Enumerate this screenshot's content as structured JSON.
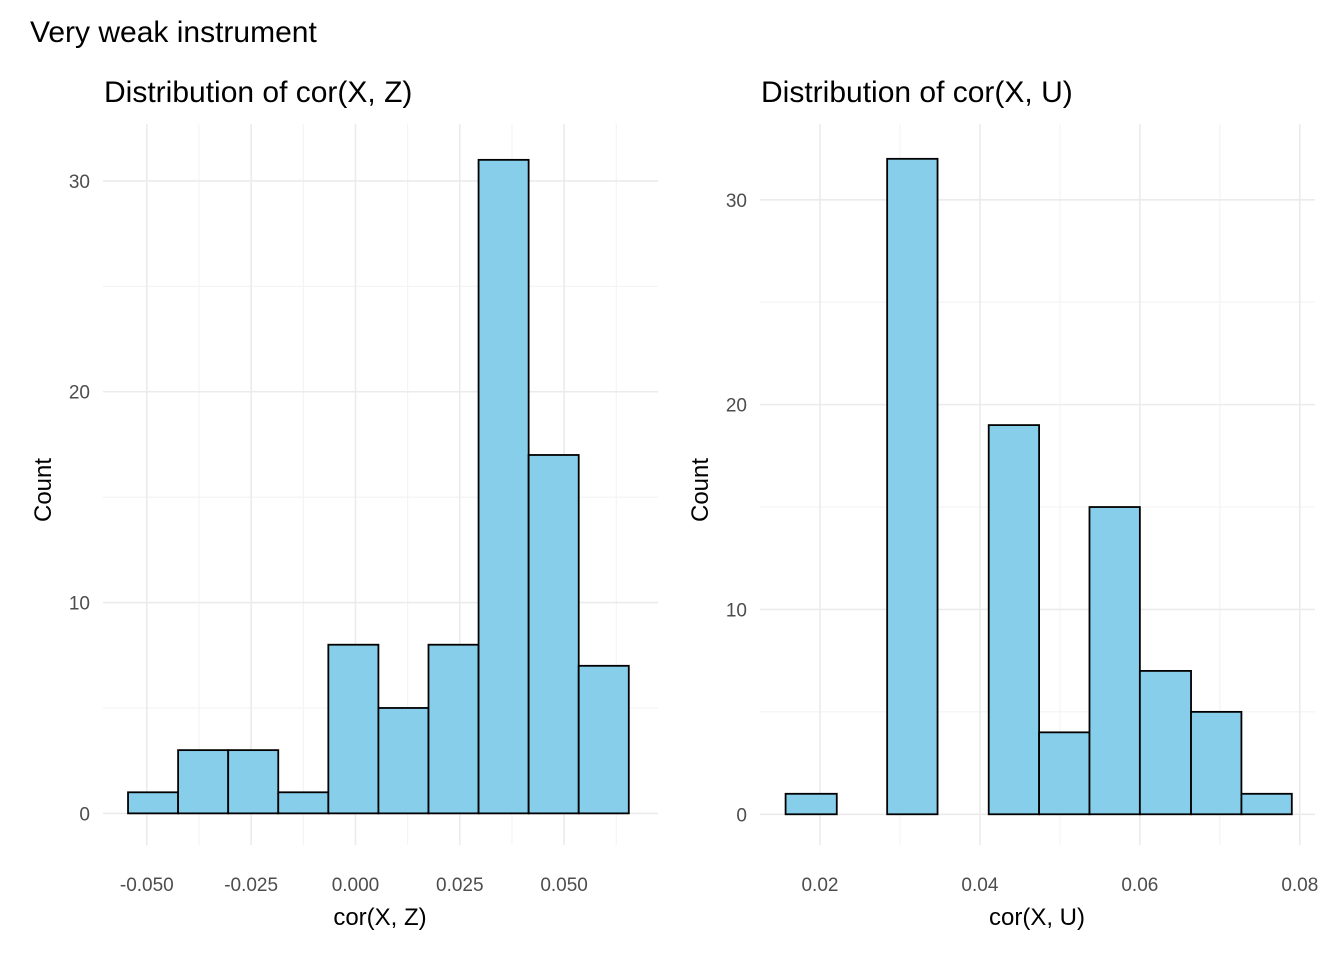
{
  "supertitle": "Very weak instrument",
  "colors": {
    "bar_fill": "#87CEEB",
    "bar_outline": "#000000"
  },
  "chart_data": [
    {
      "type": "bar",
      "title": "Distribution of cor(X, Z)",
      "xlabel": "cor(X, Z)",
      "ylabel": "Count",
      "grid": true,
      "xlim": [
        -0.0605,
        0.0725
      ],
      "ylim": [
        -1.5,
        32.7
      ],
      "x_ticks": [
        -0.05,
        -0.025,
        0.0,
        0.025,
        0.05
      ],
      "x_tick_labels": [
        "-0.050",
        "-0.025",
        "0.000",
        "0.025",
        "0.050"
      ],
      "y_ticks": [
        0,
        10,
        20,
        30
      ],
      "y_tick_labels": [
        "0",
        "10",
        "20",
        "30"
      ],
      "bin_edges": [
        -0.0545,
        -0.0425,
        -0.0305,
        -0.0185,
        -0.0065,
        0.0055,
        0.0175,
        0.0295,
        0.0415,
        0.0535,
        0.0655
      ],
      "values": [
        1,
        3,
        3,
        1,
        8,
        5,
        8,
        31,
        17,
        7
      ]
    },
    {
      "type": "bar",
      "title": "Distribution of cor(X, U)",
      "xlabel": "cor(X, U)",
      "ylabel": "Count",
      "grid": true,
      "xlim": [
        0.0125,
        0.0819
      ],
      "ylim": [
        -1.5,
        33.7
      ],
      "x_ticks": [
        0.02,
        0.04,
        0.06,
        0.08
      ],
      "x_tick_labels": [
        "0.02",
        "0.04",
        "0.06",
        "0.08"
      ],
      "y_ticks": [
        0,
        10,
        20,
        30
      ],
      "y_tick_labels": [
        "0",
        "10",
        "20",
        "30"
      ],
      "bin_edges": [
        0.0157,
        0.0221,
        0.0284,
        0.0347,
        0.0411,
        0.0474,
        0.0537,
        0.06,
        0.0664,
        0.0727,
        0.079
      ],
      "values": [
        1,
        0,
        32,
        0,
        19,
        4,
        15,
        7,
        5,
        1
      ]
    }
  ]
}
